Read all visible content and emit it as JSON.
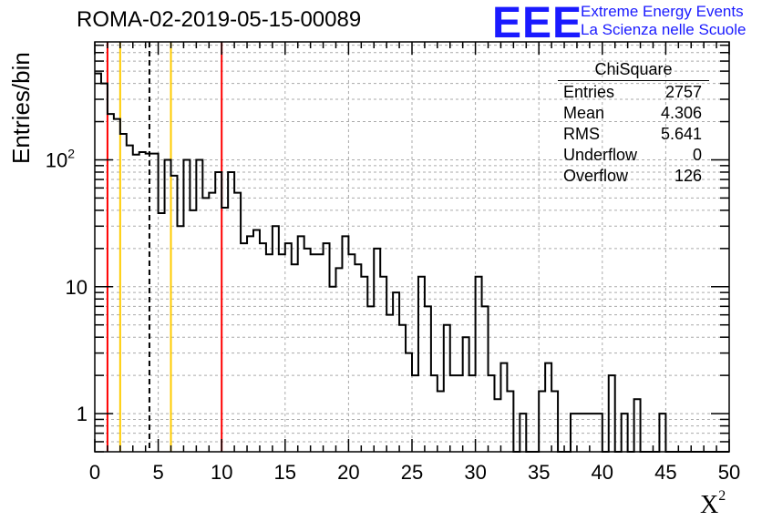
{
  "title": "ROMA-02-2019-05-15-00089",
  "logo": {
    "mark": "EEE",
    "line1": "Extreme Energy Events",
    "line2": "La Scienza nelle Scuole",
    "color": "#1a1aff"
  },
  "stats_box": {
    "title": "ChiSquare",
    "rows": [
      {
        "label": "Entries",
        "value": "2757"
      },
      {
        "label": "Mean",
        "value": "4.306"
      },
      {
        "label": "RMS",
        "value": "5.641"
      },
      {
        "label": "Underflow",
        "value": "0"
      },
      {
        "label": "Overflow",
        "value": "126"
      }
    ]
  },
  "chart_data": {
    "type": "histogram",
    "xlabel": "X",
    "xlabel_sup": "2",
    "ylabel": "Entries/bin",
    "xlim": [
      0,
      50
    ],
    "ylim": [
      0.5,
      850
    ],
    "yscale": "log",
    "grid": true,
    "bin_width": 0.5,
    "x_ticks": [
      0,
      5,
      10,
      15,
      20,
      25,
      30,
      35,
      40,
      45,
      50
    ],
    "y_ticks": [
      {
        "value": 1,
        "label": "1"
      },
      {
        "value": 10,
        "label": "10"
      },
      {
        "value": 100,
        "label": "10",
        "sup": "2"
      }
    ],
    "values": [
      480,
      400,
      230,
      210,
      160,
      130,
      110,
      115,
      112,
      112,
      38,
      100,
      75,
      30,
      100,
      40,
      100,
      50,
      55,
      80,
      42,
      80,
      55,
      22,
      25,
      28,
      22,
      18,
      30,
      18,
      22,
      15,
      25,
      20,
      18,
      18,
      22,
      10,
      14,
      25,
      18,
      15,
      12,
      7,
      20,
      12,
      6,
      9,
      5,
      3,
      2,
      12,
      7,
      2,
      1.5,
      5,
      2,
      2,
      4,
      2,
      12,
      7,
      2,
      1.3,
      2.5,
      1.5,
      0.5,
      1,
      0.5,
      0.5,
      1.5,
      2.5,
      1.5,
      0.5,
      0,
      1,
      1,
      1,
      1,
      1,
      0,
      2,
      0,
      1,
      0,
      1.3,
      0,
      0,
      0,
      1,
      0,
      0,
      0,
      0,
      0,
      0,
      0,
      0,
      0,
      0
    ],
    "vertical_lines": [
      {
        "x": 1,
        "color": "#ff0000",
        "style": "solid"
      },
      {
        "x": 2,
        "color": "#ffcc00",
        "style": "solid"
      },
      {
        "x": 4.306,
        "color": "#000000",
        "style": "dashed"
      },
      {
        "x": 6,
        "color": "#ffcc00",
        "style": "solid"
      },
      {
        "x": 10,
        "color": "#ff0000",
        "style": "solid"
      }
    ]
  }
}
